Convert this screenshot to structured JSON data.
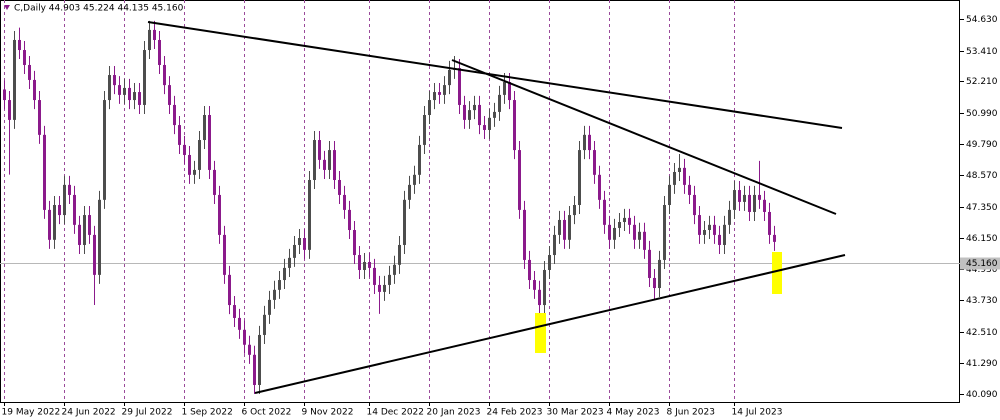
{
  "chart_data": {
    "type": "candlestick",
    "title": "C,Daily 44.903 45.224 44.135 45.160",
    "up_color": "#4d4d4d",
    "down_color": "#8b1a8b",
    "xlim": [
      -0.8,
      191.2
    ],
    "ylim": [
      39.78,
      55.37
    ],
    "xticks": [
      {
        "value": 0,
        "label": "19 May 2022"
      },
      {
        "value": 12,
        "label": "24 Jun 2022"
      },
      {
        "value": 24,
        "label": "29 Jul 2022"
      },
      {
        "value": 36,
        "label": "1 Sep 2022"
      },
      {
        "value": 48,
        "label": "6 Oct 2022"
      },
      {
        "value": 60,
        "label": "9 Nov 2022"
      },
      {
        "value": 73,
        "label": "14 Dec 2022"
      },
      {
        "value": 85,
        "label": "20 Jan 2023"
      },
      {
        "value": 97,
        "label": "24 Feb 2023"
      },
      {
        "value": 109,
        "label": "30 Mar 2023"
      },
      {
        "value": 121,
        "label": "4 May 2023"
      },
      {
        "value": 133,
        "label": "8 Jun 2023"
      },
      {
        "value": 146,
        "label": "14 Jul 2023"
      }
    ],
    "yticks": [
      {
        "value": 54.63,
        "label": "54.630"
      },
      {
        "value": 53.41,
        "label": "53.410"
      },
      {
        "value": 52.21,
        "label": "52.210"
      },
      {
        "value": 50.99,
        "label": "50.990"
      },
      {
        "value": 49.79,
        "label": "49.790"
      },
      {
        "value": 48.57,
        "label": "48.570"
      },
      {
        "value": 47.35,
        "label": "47.350"
      },
      {
        "value": 46.15,
        "label": "46.150"
      },
      {
        "value": 44.93,
        "label": "44.930"
      },
      {
        "value": 43.73,
        "label": "43.730"
      },
      {
        "value": 42.51,
        "label": "42.510"
      },
      {
        "value": 41.29,
        "label": "41.290"
      },
      {
        "value": 40.09,
        "label": "40.090"
      }
    ],
    "current_price": {
      "value": 45.16,
      "label": "45.160"
    },
    "open": [
      51.9,
      51.49,
      50.72,
      53.82,
      53.43,
      52.85,
      52.27,
      51.49,
      50.14,
      47.23,
      46.07,
      47.42,
      47.03,
      48.2,
      47.81,
      46.65,
      45.87,
      47.03,
      46.26,
      44.71,
      47.62,
      51.49,
      52.46,
      52.07,
      51.69,
      51.96,
      51.49,
      51.8,
      51.3,
      53.43,
      54.21,
      53.82,
      52.85,
      52.07,
      51.3,
      50.52,
      49.75,
      49.36,
      48.59,
      48.78,
      49.94,
      50.91,
      48.78,
      47.81,
      46.26,
      44.71,
      43.54,
      43.04,
      42.58,
      42.0,
      41.61,
      40.44,
      42.38,
      43.16,
      43.74,
      44.13,
      44.51,
      44.98,
      45.37,
      45.87,
      46.14,
      45.68,
      48.39,
      49.94,
      49.17,
      48.78,
      49.55,
      48.39,
      47.81,
      47.23,
      46.45,
      45.48,
      44.9,
      45.21,
      44.98,
      44.32,
      44.05,
      44.32,
      44.71,
      45.1,
      45.87,
      47.62,
      48.2,
      48.59,
      49.75,
      50.91,
      51.49,
      51.8,
      51.69,
      52.07,
      52.66,
      52.73,
      51.3,
      50.72,
      51.1,
      51.3,
      50.52,
      50.33,
      50.8,
      51.03,
      51.69,
      52.19,
      51.49,
      49.55,
      47.23,
      45.29,
      44.51,
      44.13,
      43.54,
      44.9,
      45.48,
      46.26,
      46.84,
      46.07,
      47.03,
      47.42,
      49.55,
      50.14,
      49.55,
      48.59,
      47.62,
      46.65,
      46.07,
      46.53,
      46.76,
      46.92,
      46.65,
      46.07,
      46.38,
      45.68,
      44.59,
      44.2,
      45.29,
      47.42,
      48.2,
      48.7,
      48.86,
      48.2,
      47.81,
      47.03,
      46.26,
      46.45,
      46.65,
      46.26,
      45.87,
      46.65,
      47.23,
      48.0,
      47.54,
      47.81,
      47.15,
      47.81,
      47.62,
      47.15,
      46.26,
      44.903
    ],
    "high": [
      52.25,
      51.84,
      54.17,
      54.3,
      53.78,
      53.2,
      52.62,
      51.84,
      50.49,
      47.58,
      47.77,
      47.77,
      48.55,
      48.55,
      48.16,
      47.0,
      47.38,
      47.38,
      46.61,
      47.97,
      51.84,
      52.81,
      52.81,
      52.42,
      52.31,
      52.31,
      52.15,
      52.15,
      53.78,
      54.56,
      54.56,
      54.17,
      53.2,
      52.42,
      51.65,
      50.87,
      50.1,
      49.71,
      49.13,
      50.29,
      51.26,
      51.26,
      49.13,
      48.16,
      46.61,
      45.06,
      43.89,
      43.39,
      42.93,
      42.35,
      41.96,
      42.73,
      43.51,
      44.09,
      44.48,
      44.86,
      45.33,
      45.72,
      46.22,
      46.49,
      46.49,
      48.74,
      50.29,
      50.29,
      49.52,
      49.9,
      49.9,
      48.74,
      48.16,
      47.58,
      46.8,
      45.83,
      45.56,
      45.56,
      45.33,
      44.67,
      44.67,
      45.06,
      45.45,
      46.22,
      47.97,
      48.55,
      48.94,
      50.1,
      51.26,
      51.84,
      52.15,
      52.15,
      52.42,
      53.01,
      53.2,
      53.08,
      51.65,
      51.45,
      51.65,
      51.65,
      50.87,
      51.15,
      51.38,
      52.04,
      52.54,
      52.54,
      51.84,
      49.9,
      47.58,
      45.64,
      44.86,
      44.48,
      45.25,
      45.83,
      46.61,
      47.19,
      47.19,
      47.38,
      47.77,
      49.9,
      50.49,
      50.49,
      49.9,
      48.94,
      47.97,
      47.0,
      46.88,
      47.11,
      47.27,
      47.27,
      47.0,
      46.73,
      46.73,
      46.03,
      44.94,
      45.64,
      47.77,
      48.55,
      49.05,
      49.4,
      49.21,
      48.55,
      48.16,
      47.38,
      46.8,
      47.0,
      47.0,
      46.61,
      47.0,
      47.58,
      48.35,
      48.35,
      48.16,
      48.16,
      48.16,
      49.13,
      47.97,
      47.5,
      46.61,
      45.224
    ],
    "low": [
      51.14,
      48.6,
      50.37,
      53.08,
      52.5,
      51.92,
      51.14,
      49.79,
      46.88,
      45.72,
      45.72,
      46.68,
      46.68,
      47.46,
      46.3,
      45.52,
      45.52,
      45.91,
      43.54,
      44.36,
      47.27,
      51.14,
      51.72,
      51.34,
      51.34,
      51.14,
      51.14,
      50.95,
      50.95,
      53.08,
      53.47,
      52.5,
      51.72,
      50.95,
      50.17,
      49.4,
      49.01,
      48.24,
      48.24,
      48.43,
      49.59,
      48.43,
      47.46,
      45.91,
      44.36,
      43.19,
      42.69,
      42.23,
      41.65,
      41.26,
      40.09,
      40.09,
      42.03,
      42.81,
      43.39,
      43.78,
      44.16,
      44.63,
      45.02,
      45.52,
      45.33,
      45.33,
      48.04,
      48.82,
      48.43,
      48.43,
      48.04,
      47.46,
      46.88,
      46.1,
      45.13,
      44.55,
      44.55,
      44.63,
      43.97,
      43.2,
      43.7,
      43.97,
      44.36,
      44.75,
      45.52,
      47.27,
      47.85,
      48.24,
      49.4,
      50.56,
      51.14,
      51.34,
      51.34,
      51.72,
      52.31,
      50.95,
      50.37,
      50.37,
      50.75,
      50.17,
      49.98,
      49.98,
      50.45,
      50.68,
      51.34,
      51.14,
      49.2,
      46.88,
      44.94,
      44.16,
      43.78,
      42.0,
      43.19,
      44.55,
      45.13,
      45.91,
      45.72,
      45.72,
      46.68,
      47.07,
      49.2,
      49.2,
      48.24,
      47.27,
      46.3,
      45.72,
      45.72,
      46.18,
      46.41,
      46.3,
      45.72,
      45.72,
      45.33,
      44.24,
      43.73,
      43.85,
      44.94,
      47.07,
      47.85,
      48.35,
      47.85,
      47.46,
      46.68,
      45.91,
      45.91,
      46.1,
      45.91,
      45.52,
      45.52,
      46.3,
      46.88,
      47.19,
      47.19,
      46.8,
      46.8,
      47.27,
      46.8,
      45.91,
      45.64,
      44.135
    ],
    "close": [
      51.49,
      50.72,
      53.82,
      53.43,
      52.85,
      52.27,
      51.49,
      50.14,
      47.23,
      46.07,
      47.42,
      47.03,
      48.2,
      47.81,
      46.65,
      45.87,
      47.03,
      46.26,
      44.71,
      47.62,
      51.49,
      52.46,
      52.07,
      51.69,
      51.96,
      51.49,
      51.8,
      51.3,
      53.43,
      54.21,
      53.82,
      52.85,
      52.07,
      51.3,
      50.52,
      49.75,
      49.36,
      48.59,
      48.78,
      49.94,
      50.91,
      48.78,
      47.81,
      46.26,
      44.71,
      43.54,
      43.04,
      42.58,
      42.0,
      41.61,
      40.44,
      42.38,
      43.16,
      43.74,
      44.13,
      44.51,
      44.98,
      45.37,
      45.87,
      46.14,
      45.68,
      48.39,
      49.94,
      49.17,
      48.78,
      49.55,
      48.39,
      47.81,
      47.23,
      46.45,
      45.48,
      44.9,
      45.21,
      44.98,
      44.32,
      44.05,
      44.32,
      44.71,
      45.1,
      45.87,
      47.62,
      48.2,
      48.59,
      49.75,
      50.91,
      51.49,
      51.8,
      51.69,
      52.07,
      52.66,
      52.73,
      51.3,
      50.72,
      51.1,
      51.3,
      50.52,
      50.33,
      50.8,
      51.03,
      51.69,
      52.19,
      51.49,
      49.55,
      47.23,
      45.29,
      44.51,
      44.13,
      43.54,
      44.9,
      45.48,
      46.26,
      46.84,
      46.07,
      47.03,
      47.42,
      49.55,
      50.14,
      49.55,
      48.59,
      47.62,
      46.65,
      46.07,
      46.53,
      46.76,
      46.92,
      46.65,
      46.07,
      46.38,
      45.68,
      44.59,
      44.2,
      45.29,
      47.42,
      48.2,
      48.7,
      48.86,
      48.2,
      47.81,
      47.03,
      46.26,
      46.45,
      46.65,
      46.26,
      45.87,
      46.65,
      47.23,
      48.0,
      47.54,
      47.81,
      47.15,
      47.81,
      47.62,
      47.15,
      46.26,
      45.99,
      45.16
    ]
  }
}
